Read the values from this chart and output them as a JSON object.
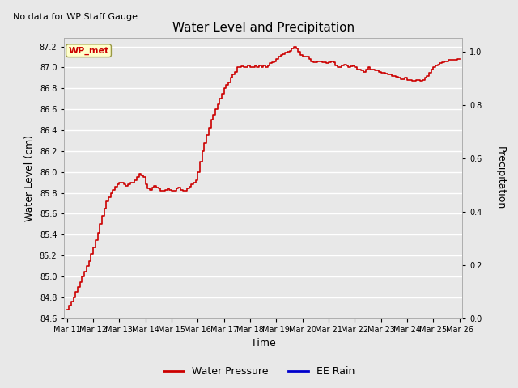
{
  "title": "Water Level and Precipitation",
  "top_left_text": "No data for WP Staff Gauge",
  "xlabel": "Time",
  "ylabel_left": "Water Level (cm)",
  "ylabel_right": "Precipitation",
  "legend_entries": [
    "Water Pressure",
    "EE Rain"
  ],
  "legend_colors": [
    "#cc0000",
    "#0000cc"
  ],
  "wp_met_label": "WP_met",
  "wp_met_bg": "#ffffcc",
  "wp_met_text_color": "#cc0000",
  "ylim_left": [
    84.6,
    87.28
  ],
  "ylim_right": [
    0.0,
    1.05
  ],
  "yticks_left": [
    84.6,
    84.8,
    85.0,
    85.2,
    85.4,
    85.6,
    85.8,
    86.0,
    86.2,
    86.4,
    86.6,
    86.8,
    87.0,
    87.2
  ],
  "yticks_right": [
    0.0,
    0.2,
    0.4,
    0.6,
    0.8,
    1.0
  ],
  "xtick_labels": [
    "Mar 11",
    "Mar 12",
    "Mar 13",
    "Mar 14",
    "Mar 15",
    "Mar 16",
    "Mar 17",
    "Mar 18",
    "Mar 19",
    "Mar 20",
    "Mar 21",
    "Mar 22",
    "Mar 23",
    "Mar 24",
    "Mar 25",
    "Mar 26"
  ],
  "bg_color": "#e8e8e8",
  "grid_color": "#ffffff",
  "line_color": "#cc0000",
  "blue_line_color": "#0000cc",
  "water_level_x": [
    0.0,
    0.08,
    0.16,
    0.25,
    0.33,
    0.42,
    0.5,
    0.58,
    0.67,
    0.75,
    0.83,
    0.92,
    1.0,
    1.08,
    1.17,
    1.25,
    1.33,
    1.42,
    1.5,
    1.58,
    1.67,
    1.75,
    1.83,
    1.92,
    2.0,
    2.08,
    2.17,
    2.25,
    2.33,
    2.42,
    2.5,
    2.58,
    2.67,
    2.75,
    2.83,
    2.92,
    3.0,
    3.08,
    3.17,
    3.25,
    3.33,
    3.42,
    3.5,
    3.58,
    3.67,
    3.75,
    3.83,
    3.92,
    4.0,
    4.08,
    4.17,
    4.25,
    4.33,
    4.42,
    4.5,
    4.58,
    4.67,
    4.75,
    4.83,
    4.92,
    5.0,
    5.08,
    5.17,
    5.25,
    5.33,
    5.42,
    5.5,
    5.58,
    5.67,
    5.75,
    5.83,
    5.92,
    6.0,
    6.08,
    6.17,
    6.25,
    6.33,
    6.42,
    6.5,
    6.58,
    6.67,
    6.75,
    6.83,
    6.92,
    7.0,
    7.08,
    7.17,
    7.25,
    7.33,
    7.42,
    7.5,
    7.58,
    7.67,
    7.75,
    7.83,
    7.92,
    8.0,
    8.08,
    8.17,
    8.25,
    8.33,
    8.42,
    8.5,
    8.58,
    8.67,
    8.75,
    8.83,
    8.92,
    9.0,
    9.08,
    9.17,
    9.25,
    9.33,
    9.42,
    9.5,
    9.58,
    9.67,
    9.75,
    9.83,
    9.92,
    10.0,
    10.08,
    10.17,
    10.25,
    10.33,
    10.42,
    10.5,
    10.58,
    10.67,
    10.75,
    10.83,
    10.92,
    11.0,
    11.08,
    11.17,
    11.25,
    11.33,
    11.42,
    11.5,
    11.58,
    11.67,
    11.75,
    11.83,
    11.92,
    12.0,
    12.08,
    12.17,
    12.25,
    12.33,
    12.42,
    12.5,
    12.58,
    12.67,
    12.75,
    12.83,
    12.92,
    13.0,
    13.08,
    13.17,
    13.25,
    13.33,
    13.42,
    13.5,
    13.58,
    13.67,
    13.75,
    13.83,
    13.92,
    14.0,
    14.08,
    14.17,
    14.25,
    14.33,
    14.42,
    14.5,
    14.58,
    14.67,
    14.75,
    14.83,
    14.92,
    15.0
  ],
  "water_level_y": [
    84.68,
    84.72,
    84.76,
    84.8,
    84.85,
    84.9,
    84.95,
    85.0,
    85.05,
    85.1,
    85.15,
    85.22,
    85.28,
    85.35,
    85.42,
    85.5,
    85.58,
    85.65,
    85.72,
    85.76,
    85.8,
    85.83,
    85.86,
    85.88,
    85.9,
    85.9,
    85.88,
    85.87,
    85.88,
    85.9,
    85.9,
    85.92,
    85.95,
    85.98,
    85.97,
    85.95,
    85.88,
    85.84,
    85.83,
    85.85,
    85.87,
    85.85,
    85.84,
    85.82,
    85.82,
    85.83,
    85.84,
    85.83,
    85.82,
    85.82,
    85.84,
    85.85,
    85.83,
    85.82,
    85.82,
    85.84,
    85.86,
    85.88,
    85.9,
    85.92,
    86.0,
    86.1,
    86.2,
    86.28,
    86.35,
    86.42,
    86.5,
    86.55,
    86.6,
    86.65,
    86.7,
    86.75,
    86.8,
    86.83,
    86.86,
    86.9,
    86.93,
    86.96,
    87.0,
    87.0,
    87.01,
    87.0,
    87.0,
    87.02,
    87.0,
    87.0,
    87.02,
    87.0,
    87.02,
    87.0,
    87.02,
    87.0,
    87.02,
    87.04,
    87.05,
    87.06,
    87.08,
    87.1,
    87.12,
    87.13,
    87.14,
    87.15,
    87.16,
    87.18,
    87.2,
    87.18,
    87.15,
    87.12,
    87.1,
    87.1,
    87.1,
    87.08,
    87.06,
    87.05,
    87.05,
    87.06,
    87.06,
    87.05,
    87.05,
    87.04,
    87.05,
    87.06,
    87.05,
    87.02,
    87.0,
    87.0,
    87.02,
    87.03,
    87.02,
    87.0,
    87.01,
    87.02,
    87.0,
    86.98,
    86.98,
    86.97,
    86.96,
    86.98,
    87.0,
    86.98,
    86.98,
    86.97,
    86.97,
    86.96,
    86.95,
    86.95,
    86.94,
    86.93,
    86.93,
    86.92,
    86.92,
    86.91,
    86.9,
    86.89,
    86.89,
    86.9,
    86.88,
    86.88,
    86.87,
    86.87,
    86.88,
    86.88,
    86.87,
    86.88,
    86.9,
    86.92,
    86.95,
    86.98,
    87.0,
    87.02,
    87.03,
    87.04,
    87.05,
    87.06,
    87.06,
    87.07,
    87.07,
    87.07,
    87.07,
    87.08,
    87.08
  ]
}
